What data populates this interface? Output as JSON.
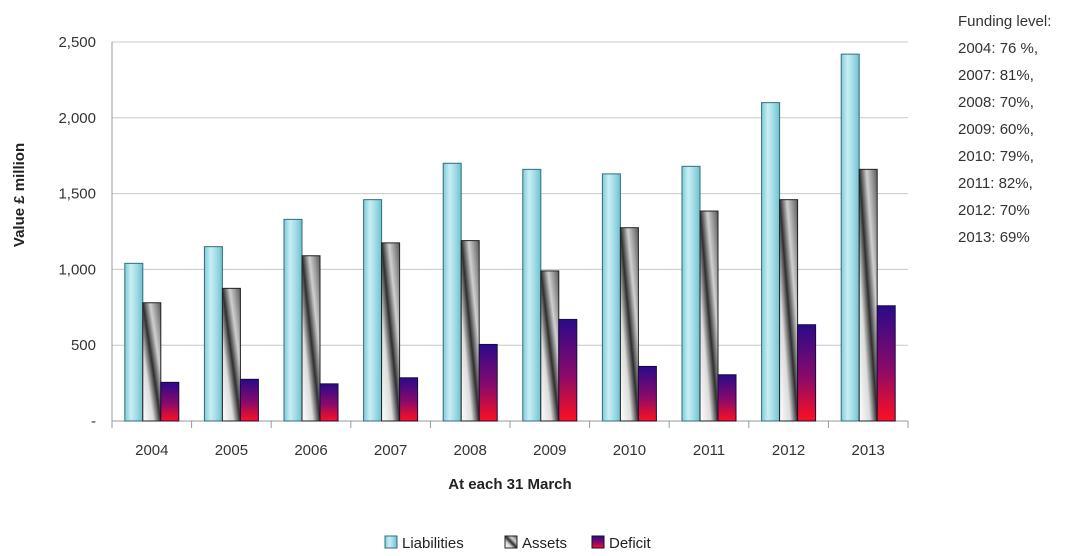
{
  "chart_data": {
    "type": "bar",
    "categories": [
      "2004",
      "2005",
      "2006",
      "2007",
      "2008",
      "2009",
      "2010",
      "2011",
      "2012",
      "2013"
    ],
    "series": [
      {
        "name": "Liabilities",
        "values": [
          1040,
          1150,
          1330,
          1460,
          1700,
          1660,
          1630,
          1680,
          2100,
          2420
        ]
      },
      {
        "name": "Assets",
        "values": [
          780,
          875,
          1090,
          1175,
          1190,
          990,
          1275,
          1385,
          1460,
          1660
        ]
      },
      {
        "name": "Deficit",
        "values": [
          255,
          275,
          245,
          285,
          505,
          670,
          360,
          305,
          635,
          760
        ]
      }
    ],
    "y_ticks": [
      "-",
      "500",
      "1,000",
      "1,500",
      "2,000",
      "2,500"
    ],
    "ylim": [
      0,
      2500
    ],
    "xlabel": "At each  31 March",
    "ylabel": "Value £ million",
    "grid": true,
    "legend_position": "bottom",
    "colors": {
      "Liabilities": "#a8dfe8",
      "Assets": "#6e6e6e",
      "Deficit": "#cc0033"
    },
    "annotation": {
      "title": "Funding level:",
      "lines": [
        "2004: 76 %,",
        "2007: 81%,",
        "2008: 70%,",
        "2009: 60%,",
        "2010: 79%,",
        "2011: 82%,",
        "2012: 70%",
        "2013: 69%"
      ]
    }
  }
}
